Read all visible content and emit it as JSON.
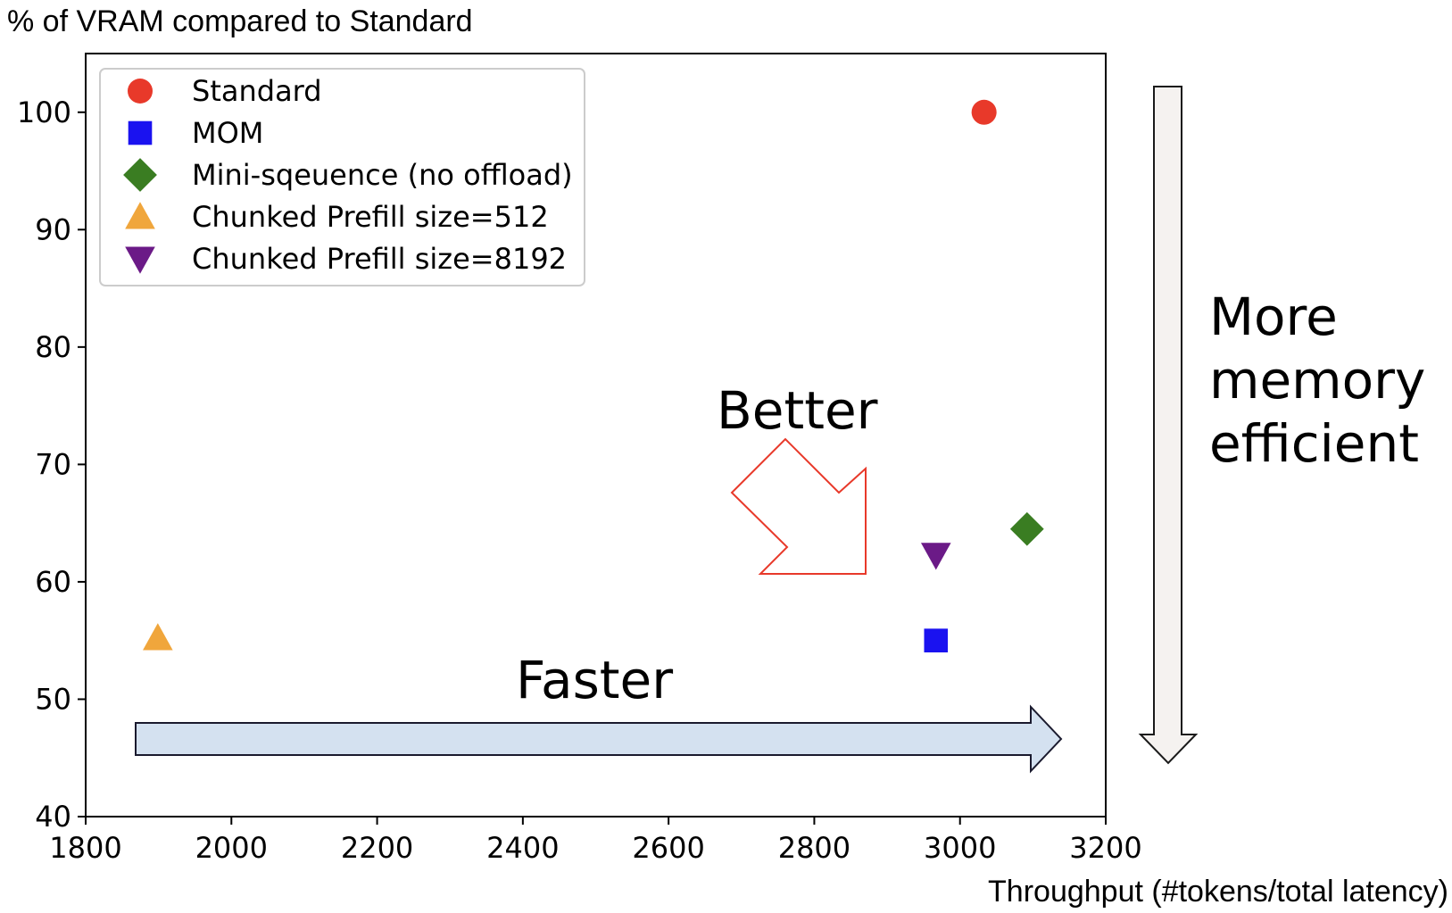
{
  "chart_data": {
    "type": "scatter",
    "ylabel": "% of VRAM compared to Standard",
    "xlabel": "Throughput (#tokens/total latency)",
    "xlim": [
      1800,
      3200
    ],
    "ylim": [
      40,
      105
    ],
    "xticks": [
      1800,
      2000,
      2200,
      2400,
      2600,
      2800,
      3000,
      3200
    ],
    "yticks": [
      40,
      50,
      60,
      70,
      80,
      90,
      100
    ],
    "grid": false,
    "legend_position": "top-left",
    "series": [
      {
        "name": "Standard",
        "marker": "circle",
        "color": "#e8392a",
        "x": 3033,
        "y": 100
      },
      {
        "name": "MOM",
        "marker": "square",
        "color": "#1a12f0",
        "x": 2967,
        "y": 55
      },
      {
        "name": "Mini-sqeuence (no offload)",
        "marker": "diamond",
        "color": "#3a7d22",
        "x": 3092,
        "y": 64.5
      },
      {
        "name": "Chunked Prefill size=512",
        "marker": "triangle-up",
        "color": "#f0a63c",
        "x": 1899,
        "y": 55.2
      },
      {
        "name": "Chunked Prefill size=8192",
        "marker": "triangle-down",
        "color": "#6b1a87",
        "x": 2967,
        "y": 62.3
      }
    ],
    "annotations": {
      "better": "Better",
      "faster": "Faster",
      "memory": [
        "More",
        "memory",
        "efficient"
      ]
    }
  }
}
